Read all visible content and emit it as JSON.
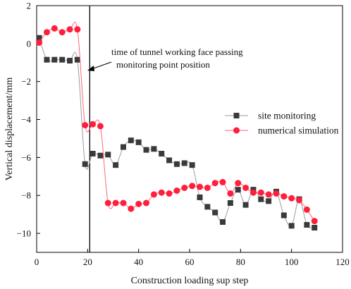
{
  "chart_data": {
    "type": "line",
    "title": "",
    "xlabel": "Construction loading sup step",
    "ylabel": "Vertical displacement/mm",
    "xlim": [
      0,
      120
    ],
    "ylim": [
      -11,
      2
    ],
    "x_ticks": [
      0,
      20,
      40,
      60,
      80,
      100,
      120
    ],
    "y_ticks": [
      2,
      0,
      -2,
      -4,
      -6,
      -8,
      -10
    ],
    "x_tick_labels": [
      "0",
      "20",
      "40",
      "60",
      "80",
      "100",
      "120"
    ],
    "y_tick_labels": [
      "2",
      "0",
      "−2",
      "−4",
      "−6",
      "−8",
      "−10"
    ],
    "grid": false,
    "legend_position": "right",
    "annotation": {
      "lines": [
        "time of tunnel working face passing",
        "monitoring point position"
      ],
      "marker_x": 20
    },
    "series": [
      {
        "name": "site monitoring",
        "color": "#3a3a3a",
        "line_color": "#9a9a9a",
        "marker": "square",
        "x": [
          1,
          4,
          7,
          10,
          13,
          16,
          19,
          22,
          25,
          28,
          31,
          34,
          37,
          40,
          43,
          46,
          49,
          52,
          55,
          58,
          61,
          64,
          67,
          70,
          73,
          76,
          79,
          82,
          85,
          88,
          91,
          94,
          97,
          100,
          103,
          106,
          109
        ],
        "y": [
          0.3,
          -0.85,
          -0.85,
          -0.85,
          -0.9,
          -0.85,
          -6.35,
          -5.8,
          -5.9,
          -5.85,
          -6.4,
          -5.45,
          -5.1,
          -5.2,
          -5.6,
          -5.55,
          -5.8,
          -6.15,
          -6.35,
          -6.3,
          -6.4,
          -8.1,
          -8.6,
          -8.9,
          -9.4,
          -8.4,
          -7.7,
          -8.5,
          -7.7,
          -8.2,
          -8.3,
          -7.8,
          -9.05,
          -9.6,
          -8.2,
          -9.55,
          -9.7
        ]
      },
      {
        "name": "numerical simulation",
        "color": "#ff1f3d",
        "line_color": "#ff6677",
        "marker": "circle",
        "x": [
          1,
          4,
          7,
          10,
          13,
          16,
          19,
          22,
          25,
          28,
          31,
          34,
          37,
          40,
          43,
          46,
          49,
          52,
          55,
          58,
          61,
          64,
          67,
          70,
          73,
          76,
          79,
          82,
          85,
          88,
          91,
          94,
          97,
          100,
          103,
          106,
          109
        ],
        "y": [
          0.05,
          0.6,
          0.8,
          0.6,
          0.75,
          0.75,
          -4.3,
          -4.25,
          -4.35,
          -8.4,
          -8.4,
          -8.4,
          -8.7,
          -8.45,
          -8.4,
          -7.95,
          -7.85,
          -7.9,
          -7.75,
          -7.6,
          -7.5,
          -7.55,
          -7.6,
          -7.35,
          -7.3,
          -7.9,
          -7.35,
          -7.6,
          -7.85,
          -7.85,
          -7.95,
          -7.9,
          -8.05,
          -8.15,
          -8.25,
          -8.75,
          -9.35
        ]
      }
    ]
  }
}
